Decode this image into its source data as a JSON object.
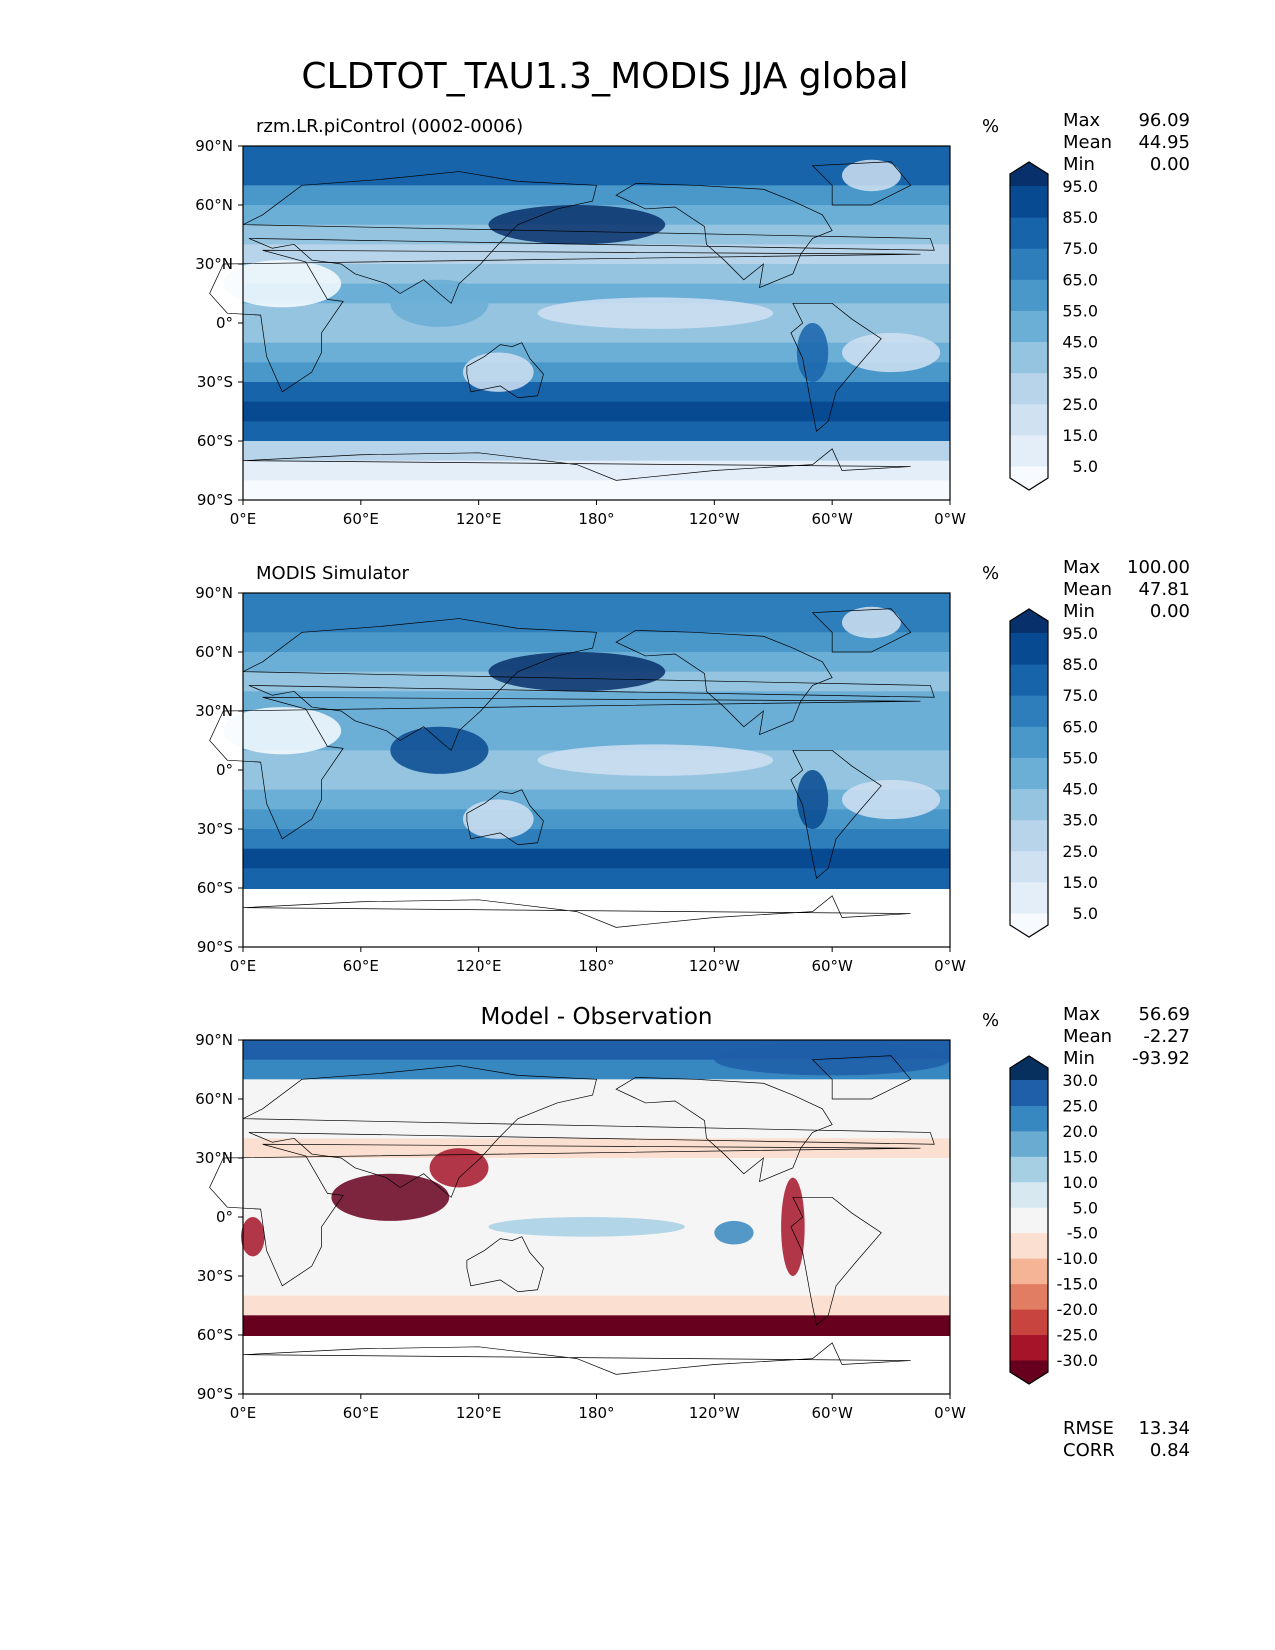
{
  "figure_title": "CLDTOT_TAU1.3_MODIS JJA global",
  "chart_data": [
    {
      "type": "heatmap",
      "title": "rzm.LR.piControl (0002-0006)",
      "units": "%",
      "stats": {
        "labels": [
          "Max",
          "Mean",
          "Min"
        ],
        "values": [
          "96.09",
          "44.95",
          "0.00"
        ]
      },
      "x_ticks": [
        "0°E",
        "60°E",
        "120°E",
        "180°",
        "120°W",
        "60°W",
        "0°W"
      ],
      "y_ticks": [
        "90°N",
        "60°N",
        "30°N",
        "0°",
        "30°S",
        "60°S",
        "90°S"
      ],
      "xlim": [
        0,
        360
      ],
      "ylim": [
        -90,
        90
      ],
      "colorbar": {
        "labels": [
          "95.0",
          "85.0",
          "75.0",
          "65.0",
          "55.0",
          "45.0",
          "35.0",
          "25.0",
          "15.0",
          "5.0"
        ],
        "colors": [
          "#f7fbff",
          "#e3eef9",
          "#d0e1f2",
          "#b7d4ea",
          "#94c4df",
          "#6baed6",
          "#4a98c9",
          "#2e7ebc",
          "#1764ab",
          "#084a91",
          "#08306b"
        ]
      },
      "zonal_level_profile_90N_to_90S": [
        8,
        8,
        6,
        5,
        4,
        3,
        4,
        5,
        4,
        4,
        5,
        6,
        8,
        9,
        8,
        3,
        1,
        0
      ]
    },
    {
      "type": "heatmap",
      "title": "MODIS Simulator",
      "units": "%",
      "stats": {
        "labels": [
          "Max",
          "Mean",
          "Min"
        ],
        "values": [
          "100.00",
          "47.81",
          "0.00"
        ]
      },
      "x_ticks": [
        "0°E",
        "60°E",
        "120°E",
        "180°",
        "120°W",
        "60°W",
        "0°W"
      ],
      "y_ticks": [
        "90°N",
        "60°N",
        "30°N",
        "0°",
        "30°S",
        "60°S",
        "90°S"
      ],
      "xlim": [
        0,
        360
      ],
      "ylim": [
        -90,
        90
      ],
      "colorbar": {
        "labels": [
          "95.0",
          "85.0",
          "75.0",
          "65.0",
          "55.0",
          "45.0",
          "35.0",
          "25.0",
          "15.0",
          "5.0"
        ],
        "colors": [
          "#f7fbff",
          "#e3eef9",
          "#d0e1f2",
          "#b7d4ea",
          "#94c4df",
          "#6baed6",
          "#4a98c9",
          "#2e7ebc",
          "#1764ab",
          "#084a91",
          "#08306b"
        ]
      },
      "zonal_level_profile_90N_to_90S": [
        7,
        7,
        6,
        5,
        4,
        5,
        5,
        5,
        4,
        4,
        5,
        6,
        7,
        9,
        8,
        -1,
        -1,
        -1
      ]
    },
    {
      "type": "heatmap",
      "title": "Model - Observation",
      "units": "%",
      "stats": {
        "labels": [
          "Max",
          "Mean",
          "Min"
        ],
        "values": [
          "56.69",
          "-2.27",
          "-93.92"
        ]
      },
      "extra_stats": {
        "labels": [
          "RMSE",
          "CORR"
        ],
        "values": [
          "13.34",
          "0.84"
        ]
      },
      "x_ticks": [
        "0°E",
        "60°E",
        "120°E",
        "180°",
        "120°W",
        "60°W",
        "0°W"
      ],
      "y_ticks": [
        "90°N",
        "60°N",
        "30°N",
        "0°",
        "30°S",
        "60°S",
        "90°S"
      ],
      "xlim": [
        0,
        360
      ],
      "ylim": [
        -90,
        90
      ],
      "colorbar": {
        "labels": [
          "30.0",
          "25.0",
          "20.0",
          "15.0",
          "10.0",
          "5.0",
          "-5.0",
          "-10.0",
          "-15.0",
          "-20.0",
          "-25.0",
          "-30.0"
        ],
        "colors": [
          "#67001f",
          "#a51429",
          "#c8443e",
          "#e17d62",
          "#f5b495",
          "#fbdfd0",
          "#f5f5f5",
          "#d8e8f1",
          "#a6cfe4",
          "#6aabd1",
          "#3787c0",
          "#1f5ea8",
          "#08305f"
        ]
      },
      "zonal_level_profile_90N_to_90S": [
        11,
        10,
        6,
        6,
        6,
        5,
        6,
        6,
        6,
        6,
        6,
        6,
        6,
        5,
        0,
        -1,
        -1,
        -1
      ]
    }
  ]
}
